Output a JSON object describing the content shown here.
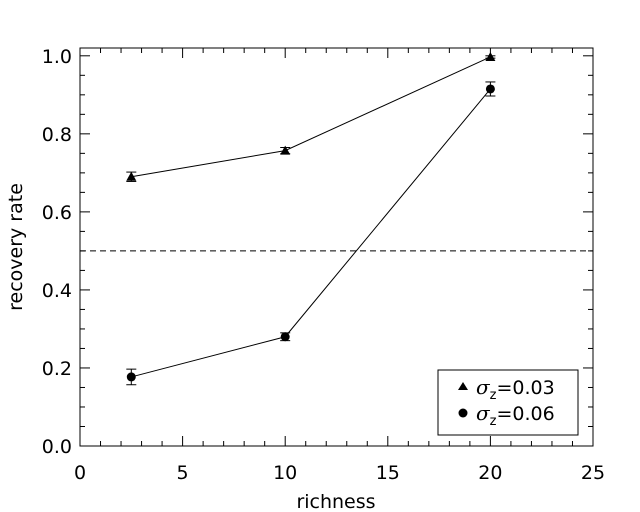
{
  "chart_data": {
    "type": "scatter",
    "xlabel": "richness",
    "ylabel": "recovery rate",
    "xlim": [
      0,
      25
    ],
    "ylim": [
      0,
      1.02
    ],
    "xticks": [
      "0",
      "5",
      "10",
      "15",
      "20",
      "25"
    ],
    "yticks": [
      "0.0",
      "0.2",
      "0.4",
      "0.6",
      "0.8",
      "1.0"
    ],
    "xtick_values": [
      0,
      5,
      10,
      15,
      20,
      25
    ],
    "ytick_values": [
      0.0,
      0.2,
      0.4,
      0.6,
      0.8,
      1.0
    ],
    "reference_line": {
      "y": 0.5,
      "style": "dashed"
    },
    "grid": false,
    "legend_position": "bottom-right",
    "series": [
      {
        "name": "σz=0.03",
        "legend_symbol": "σ",
        "legend_subscript": "z",
        "legend_value": "=0.03",
        "marker": "triangle",
        "x": [
          2.5,
          10,
          20
        ],
        "y": [
          0.69,
          0.757,
          0.997
        ],
        "yerr": [
          0.012,
          0.008,
          0.003
        ]
      },
      {
        "name": "σz=0.06",
        "legend_symbol": "σ",
        "legend_subscript": "z",
        "legend_value": "=0.06",
        "marker": "circle",
        "x": [
          2.5,
          10,
          20
        ],
        "y": [
          0.177,
          0.28,
          0.915
        ],
        "yerr": [
          0.02,
          0.01,
          0.018
        ]
      }
    ]
  }
}
